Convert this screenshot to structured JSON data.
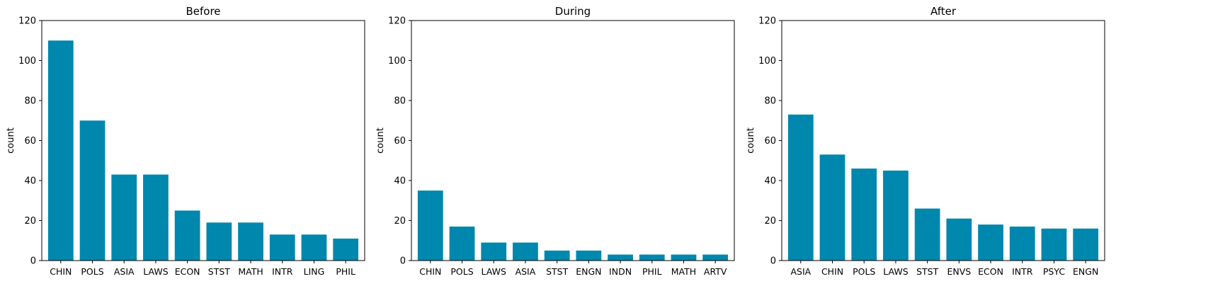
{
  "colors": {
    "bar": "#0087ad",
    "axis": "#000000",
    "background": "#ffffff"
  },
  "chart_data": [
    {
      "type": "bar",
      "title": "Before",
      "xlabel": "",
      "ylabel": "count",
      "ylim": [
        0,
        120
      ],
      "yticks": [
        0,
        20,
        40,
        60,
        80,
        100,
        120
      ],
      "grid": false,
      "categories": [
        "CHIN",
        "POLS",
        "ASIA",
        "LAWS",
        "ECON",
        "STST",
        "MATH",
        "INTR",
        "LING",
        "PHIL"
      ],
      "values": [
        110,
        70,
        43,
        43,
        25,
        19,
        19,
        13,
        13,
        11
      ]
    },
    {
      "type": "bar",
      "title": "During",
      "xlabel": "",
      "ylabel": "count",
      "ylim": [
        0,
        120
      ],
      "yticks": [
        0,
        20,
        40,
        60,
        80,
        100,
        120
      ],
      "grid": false,
      "categories": [
        "CHIN",
        "POLS",
        "LAWS",
        "ASIA",
        "STST",
        "ENGN",
        "INDN",
        "PHIL",
        "MATH",
        "ARTV"
      ],
      "values": [
        35,
        17,
        9,
        9,
        5,
        5,
        3,
        3,
        3,
        3
      ]
    },
    {
      "type": "bar",
      "title": "After",
      "xlabel": "",
      "ylabel": "count",
      "ylim": [
        0,
        120
      ],
      "yticks": [
        0,
        20,
        40,
        60,
        80,
        100,
        120
      ],
      "grid": false,
      "categories": [
        "ASIA",
        "CHIN",
        "POLS",
        "LAWS",
        "STST",
        "ENVS",
        "ECON",
        "INTR",
        "PSYC",
        "ENGN"
      ],
      "values": [
        73,
        53,
        46,
        45,
        26,
        21,
        18,
        17,
        16,
        16
      ]
    }
  ]
}
